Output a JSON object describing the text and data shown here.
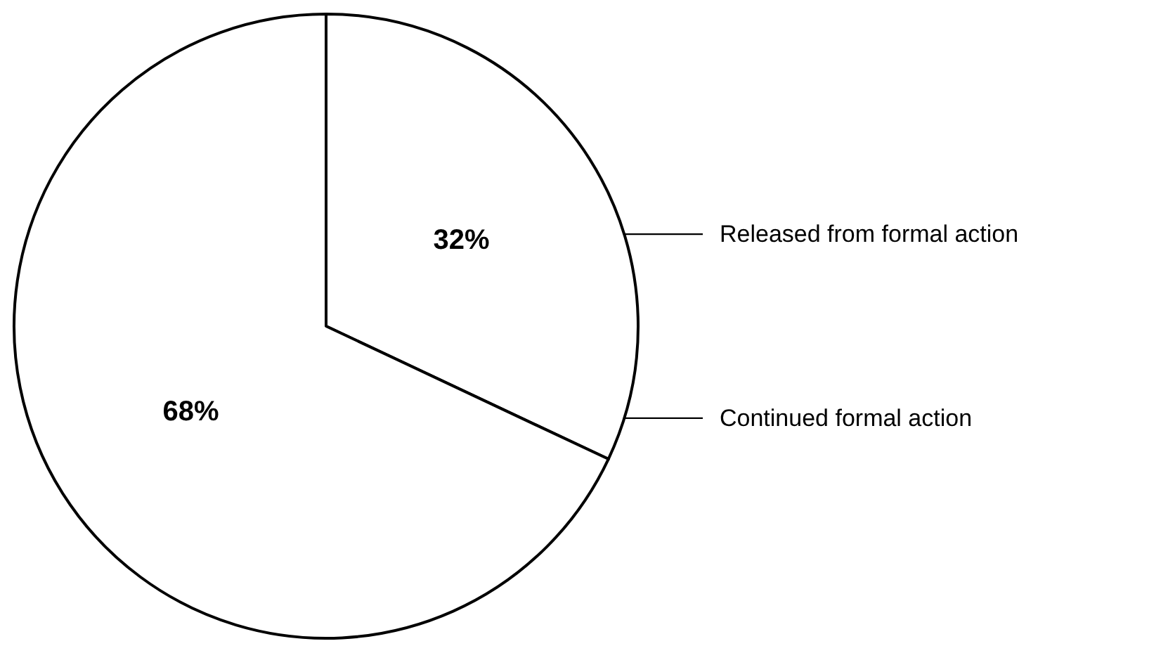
{
  "chart_data": {
    "type": "pie",
    "categories": [
      "Released from formal action",
      "Continued formal action"
    ],
    "values": [
      32,
      68
    ],
    "colors": [
      "#ffffff",
      "#ffffff"
    ],
    "value_labels": [
      "32%",
      "68%"
    ],
    "legend": false
  }
}
